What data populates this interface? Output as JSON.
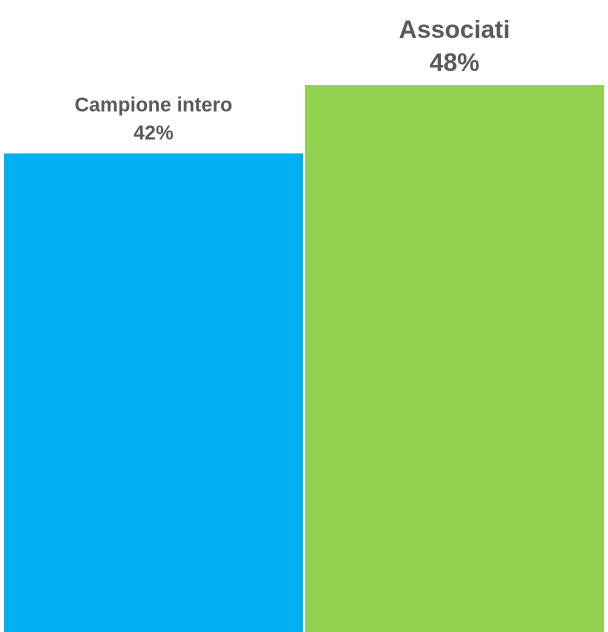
{
  "chart_data": {
    "type": "bar",
    "categories": [
      "Campione intero",
      "Associati"
    ],
    "values": [
      42,
      48
    ],
    "value_labels": [
      "42%",
      "48%"
    ],
    "unit": "%",
    "colors": [
      "#00B0F0",
      "#92D050"
    ],
    "label_color": "#595959",
    "background": "#FFFFFF",
    "title": "",
    "xlabel": "",
    "ylabel": "",
    "grid": false,
    "legend": "none"
  }
}
